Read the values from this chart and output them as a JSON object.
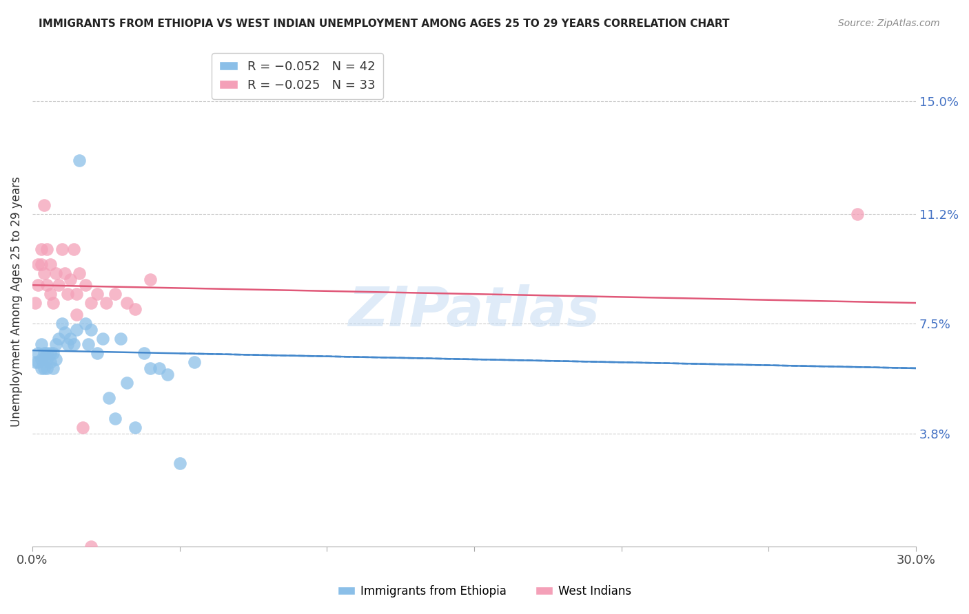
{
  "title": "IMMIGRANTS FROM ETHIOPIA VS WEST INDIAN UNEMPLOYMENT AMONG AGES 25 TO 29 YEARS CORRELATION CHART",
  "source": "Source: ZipAtlas.com",
  "ylabel": "Unemployment Among Ages 25 to 29 years",
  "ytick_labels": [
    "3.8%",
    "7.5%",
    "11.2%",
    "15.0%"
  ],
  "ytick_values": [
    0.038,
    0.075,
    0.112,
    0.15
  ],
  "xlim": [
    0.0,
    0.3
  ],
  "ylim": [
    0.0,
    0.165
  ],
  "watermark": "ZIPatlas",
  "color_ethiopia": "#8BBFE8",
  "color_westindian": "#F4A0B8",
  "trend_ethiopia_color": "#4488CC",
  "trend_westindian_color": "#E05878",
  "ethiopia_x": [
    0.001,
    0.002,
    0.002,
    0.003,
    0.003,
    0.003,
    0.004,
    0.004,
    0.004,
    0.005,
    0.005,
    0.005,
    0.006,
    0.006,
    0.007,
    0.007,
    0.008,
    0.008,
    0.009,
    0.01,
    0.011,
    0.012,
    0.013,
    0.014,
    0.015,
    0.016,
    0.018,
    0.019,
    0.02,
    0.022,
    0.024,
    0.026,
    0.028,
    0.03,
    0.032,
    0.035,
    0.038,
    0.04,
    0.043,
    0.046,
    0.05,
    0.055
  ],
  "ethiopia_y": [
    0.062,
    0.062,
    0.065,
    0.06,
    0.063,
    0.068,
    0.06,
    0.063,
    0.065,
    0.06,
    0.063,
    0.065,
    0.062,
    0.065,
    0.06,
    0.065,
    0.063,
    0.068,
    0.07,
    0.075,
    0.072,
    0.068,
    0.07,
    0.068,
    0.073,
    0.13,
    0.075,
    0.068,
    0.073,
    0.065,
    0.07,
    0.05,
    0.043,
    0.07,
    0.055,
    0.04,
    0.065,
    0.06,
    0.06,
    0.058,
    0.028,
    0.062
  ],
  "westindian_x": [
    0.001,
    0.002,
    0.002,
    0.003,
    0.003,
    0.004,
    0.004,
    0.005,
    0.005,
    0.006,
    0.006,
    0.007,
    0.008,
    0.009,
    0.01,
    0.011,
    0.012,
    0.013,
    0.014,
    0.015,
    0.016,
    0.018,
    0.02,
    0.022,
    0.025,
    0.028,
    0.032,
    0.035,
    0.04,
    0.015,
    0.02,
    0.017,
    0.28
  ],
  "westindian_y": [
    0.082,
    0.088,
    0.095,
    0.1,
    0.095,
    0.092,
    0.115,
    0.1,
    0.088,
    0.085,
    0.095,
    0.082,
    0.092,
    0.088,
    0.1,
    0.092,
    0.085,
    0.09,
    0.1,
    0.085,
    0.092,
    0.088,
    0.082,
    0.085,
    0.082,
    0.085,
    0.082,
    0.08,
    0.09,
    0.078,
    0.0,
    0.04,
    0.112
  ],
  "ethiopia_trend_x": [
    0.0,
    0.3
  ],
  "ethiopia_trend_y": [
    0.066,
    0.06
  ],
  "westindian_trend_x": [
    0.0,
    0.3
  ],
  "westindian_trend_y": [
    0.088,
    0.082
  ]
}
